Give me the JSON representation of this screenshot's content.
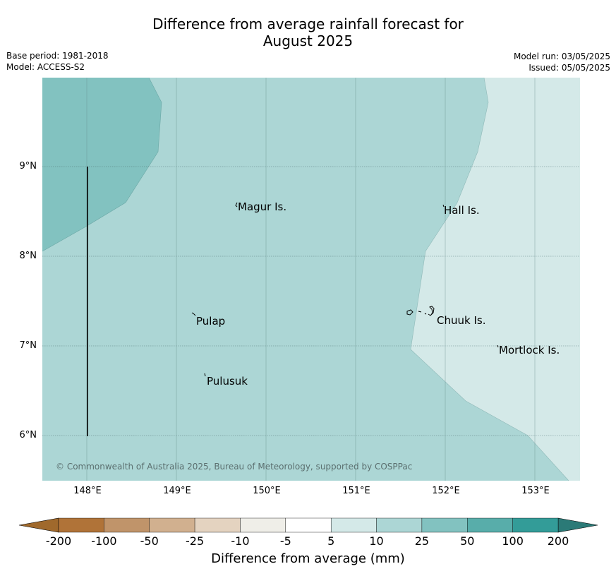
{
  "title_line1": "Difference from average rainfall forecast for",
  "title_line2": "August 2025",
  "meta_left": {
    "base_period": "Base period: 1981-2018",
    "model": "Model: ACCESS-S2"
  },
  "meta_right": {
    "model_run": "Model run: 03/05/2025",
    "issued": "Issued: 05/05/2025"
  },
  "lat_ticks": [
    "9°N",
    "8°N",
    "7°N",
    "6°N"
  ],
  "lon_ticks": [
    "148°E",
    "149°E",
    "150°E",
    "151°E",
    "152°E",
    "153°E"
  ],
  "places": [
    "Magur Is.",
    "Hall Is.",
    "Pulap",
    "Chuuk Is.",
    "Mortlock Is.",
    "Pulusuk"
  ],
  "copyright": "© Commonwealth of Australia 2025, Bureau of Meteorology, supported by COSPPac",
  "colorbar": {
    "labels": [
      "-200",
      "-100",
      "-50",
      "-25",
      "-10",
      "-5",
      "5",
      "10",
      "25",
      "50",
      "100",
      "200"
    ],
    "colors": [
      "#a0692c",
      "#b07338",
      "#c0946a",
      "#d1b08f",
      "#e4d3c0",
      "#efeee8",
      "#ffffff",
      "#d4e9e8",
      "#acd6d5",
      "#82c2c0",
      "#58adaa",
      "#339c98",
      "#2b7a77"
    ],
    "title": "Difference from average (mm)"
  },
  "region_colors": {
    "class_10_25": "#acd6d5",
    "class_25_50": "#82c2c0",
    "class_5_10": "#d4e9e8"
  }
}
